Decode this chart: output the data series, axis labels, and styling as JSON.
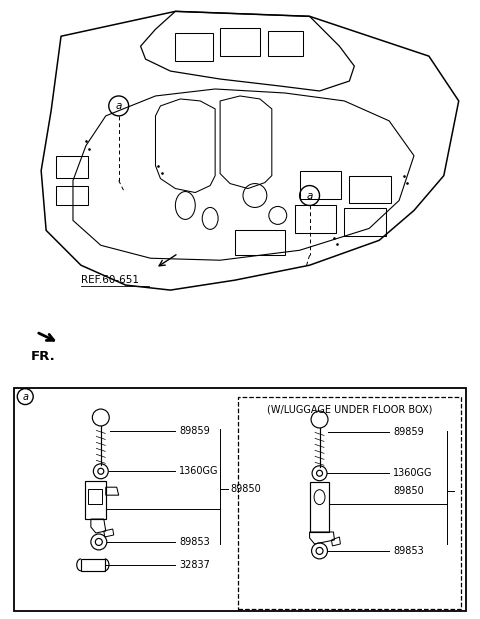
{
  "bg_color": "#ffffff",
  "fig_width": 4.8,
  "fig_height": 6.19,
  "dpi": 100,
  "ref_text": "REF.60-651",
  "fr_text": "FR.",
  "circle_label_a": "a",
  "luggage_box_label": "(W/LUGGAGE UNDER FLOOR BOX)",
  "left_parts": [
    "89859",
    "1360GG",
    "89850",
    "89853",
    "32837"
  ],
  "right_parts": [
    "89859",
    "1360GG",
    "89850",
    "89853"
  ]
}
